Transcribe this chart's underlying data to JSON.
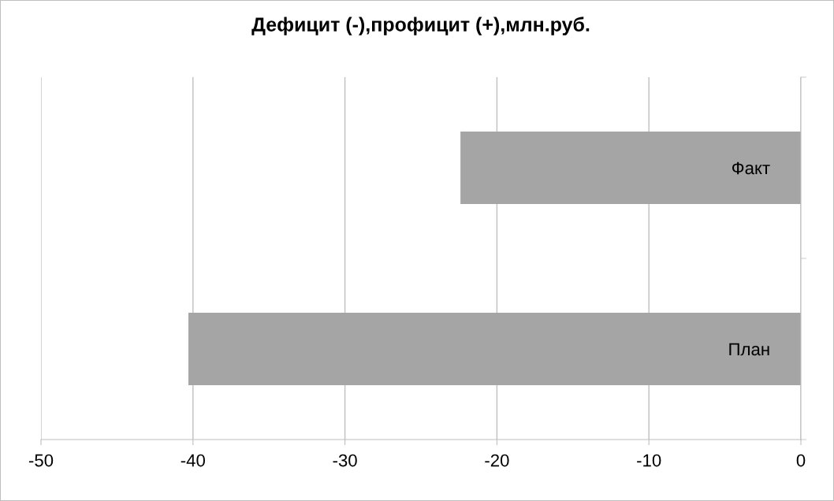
{
  "chart_data": {
    "type": "bar",
    "orientation": "horizontal",
    "title": "Дефицит (-),профицит (+),млн.руб.",
    "categories": [
      "Факт",
      "План"
    ],
    "values": [
      -22.4,
      -40.3
    ],
    "color": "#a5a5a5",
    "xlim": [
      -50,
      0
    ],
    "xticks": [
      -50,
      -40,
      -30,
      -20,
      -10,
      0
    ],
    "grid": "x"
  }
}
